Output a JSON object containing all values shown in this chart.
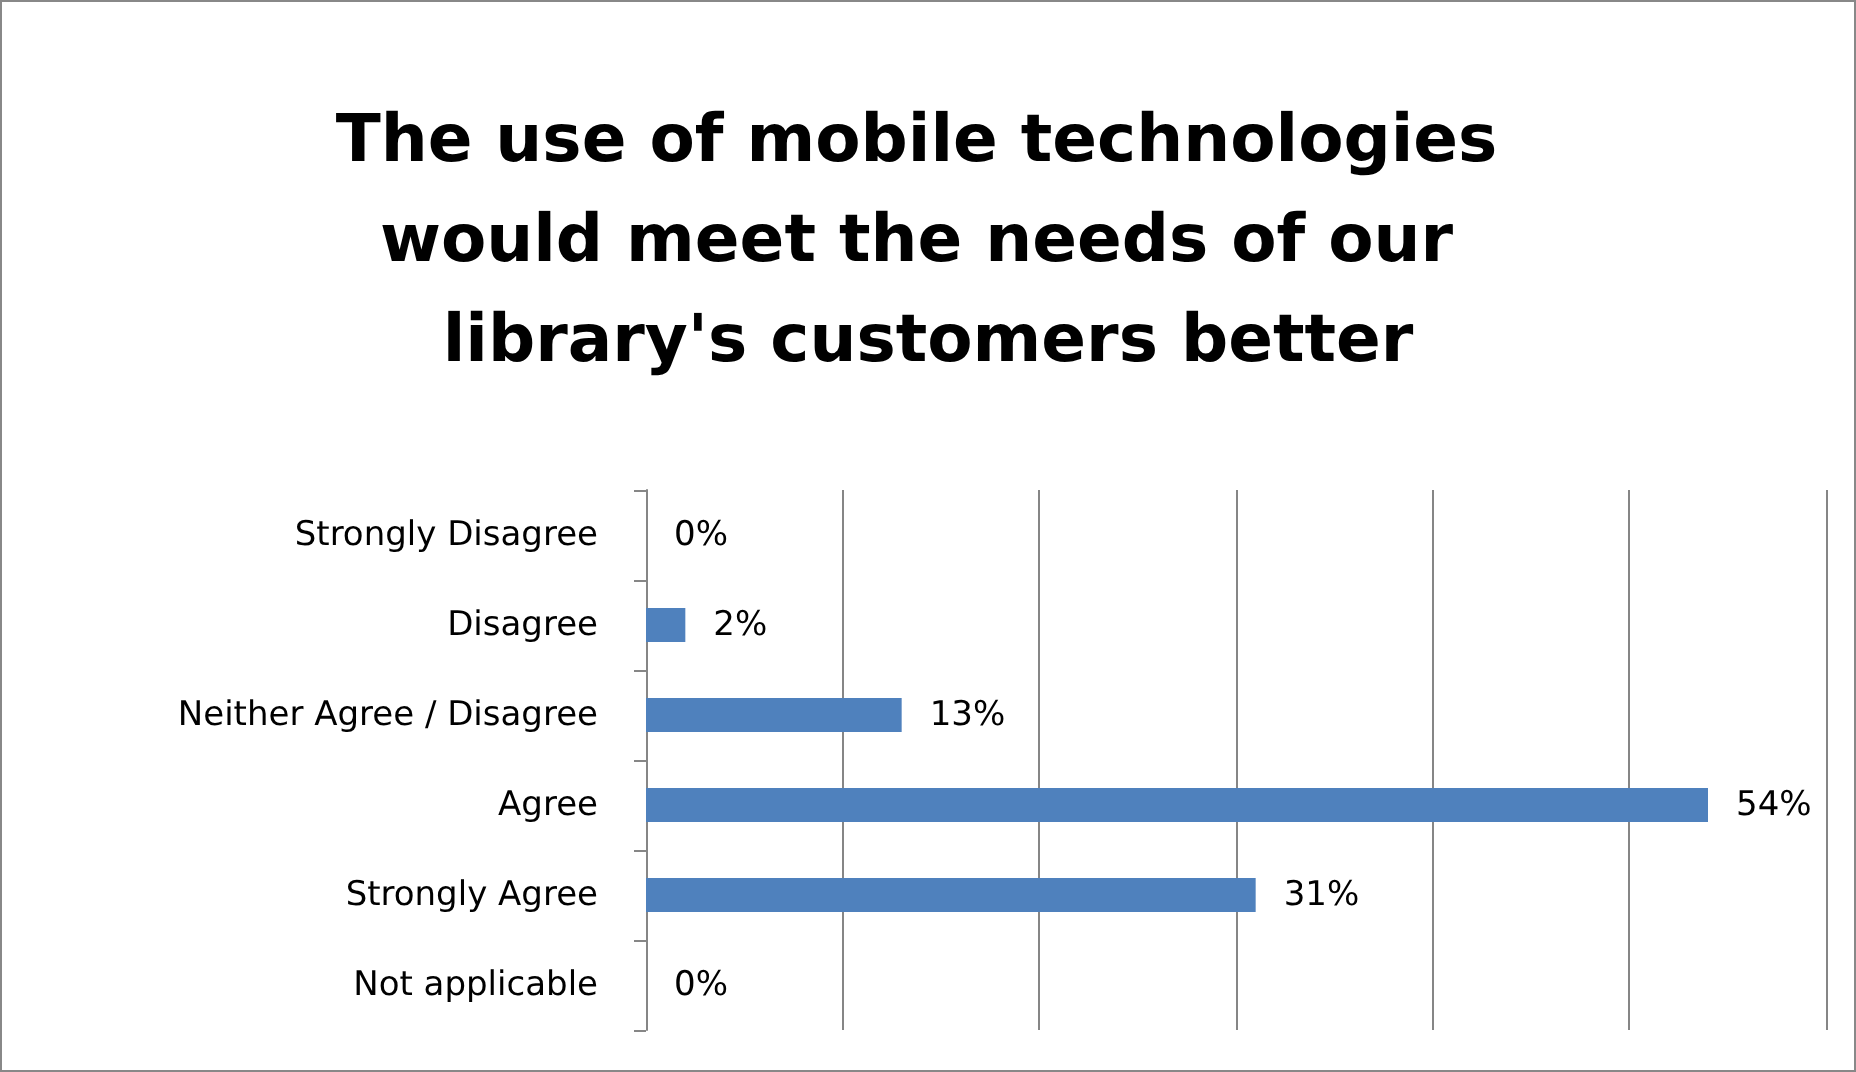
{
  "chart_data": {
    "type": "bar",
    "orientation": "horizontal",
    "title": "The use of mobile technologies would meet the needs of our library's customers better",
    "categories": [
      "Strongly Disagree",
      "Disagree",
      "Neither Agree / Disagree",
      "Agree",
      "Strongly Agree",
      "Not applicable"
    ],
    "values": [
      0,
      2,
      13,
      54,
      31,
      0
    ],
    "value_labels": [
      "0%",
      "2%",
      "13%",
      "54%",
      "31%",
      "0%"
    ],
    "color": "#4f81bd",
    "xlim": [
      0,
      60
    ],
    "xticks": [
      {
        "value": 0,
        "label": null
      },
      {
        "value": 10,
        "label": null
      },
      {
        "value": 20,
        "label": null
      },
      {
        "value": 30,
        "label": null
      },
      {
        "value": 40,
        "label": null
      },
      {
        "value": 50,
        "label": null
      },
      {
        "value": 60,
        "label": null
      }
    ],
    "tick_labels": "y",
    "grid": "x"
  }
}
